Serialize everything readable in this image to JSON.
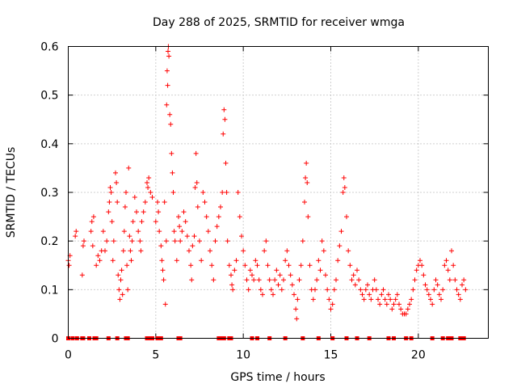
{
  "chart_data": {
    "type": "scatter",
    "title": "Day 288 of 2025, SRMTID for receiver wmga",
    "xlabel": "GPS time / hours",
    "ylabel": "SRMTID / TECUs",
    "xlim": [
      0,
      24
    ],
    "ylim": [
      0,
      0.6
    ],
    "xticks": [
      0,
      5,
      10,
      15,
      20
    ],
    "xtick_labels": [
      "0",
      "5",
      "10",
      "15",
      "20"
    ],
    "yticks": [
      0,
      0.1,
      0.2,
      0.3,
      0.4,
      0.5,
      0.6
    ],
    "ytick_labels": [
      "0",
      "0.1",
      "0.2",
      "0.3",
      "0.4",
      "0.5",
      "0.6"
    ],
    "grid": true,
    "marker": "plus",
    "color": "#ff0000",
    "zero_marker": "square",
    "series": [
      {
        "name": "SRMTID",
        "points": [
          [
            0.0,
            0.16
          ],
          [
            0.05,
            0.15
          ],
          [
            0.1,
            0.17
          ],
          [
            0.4,
            0.21
          ],
          [
            0.45,
            0.22
          ],
          [
            0.8,
            0.13
          ],
          [
            0.85,
            0.19
          ],
          [
            0.9,
            0.2
          ],
          [
            1.3,
            0.22
          ],
          [
            1.35,
            0.24
          ],
          [
            1.4,
            0.19
          ],
          [
            1.45,
            0.25
          ],
          [
            1.6,
            0.15
          ],
          [
            1.7,
            0.17
          ],
          [
            1.8,
            0.16
          ],
          [
            1.9,
            0.18
          ],
          [
            2.0,
            0.22
          ],
          [
            2.1,
            0.18
          ],
          [
            2.2,
            0.2
          ],
          [
            2.3,
            0.26
          ],
          [
            2.35,
            0.28
          ],
          [
            2.4,
            0.31
          ],
          [
            2.45,
            0.3
          ],
          [
            2.5,
            0.24
          ],
          [
            2.55,
            0.16
          ],
          [
            2.6,
            0.2
          ],
          [
            2.7,
            0.34
          ],
          [
            2.75,
            0.32
          ],
          [
            2.8,
            0.28
          ],
          [
            2.85,
            0.13
          ],
          [
            2.9,
            0.1
          ],
          [
            2.95,
            0.08
          ],
          [
            3.0,
            0.12
          ],
          [
            3.05,
            0.14
          ],
          [
            3.1,
            0.09
          ],
          [
            3.15,
            0.18
          ],
          [
            3.2,
            0.22
          ],
          [
            3.25,
            0.27
          ],
          [
            3.3,
            0.3
          ],
          [
            3.35,
            0.15
          ],
          [
            3.4,
            0.1
          ],
          [
            3.45,
            0.35
          ],
          [
            3.5,
            0.21
          ],
          [
            3.55,
            0.18
          ],
          [
            3.6,
            0.16
          ],
          [
            3.65,
            0.2
          ],
          [
            3.7,
            0.24
          ],
          [
            3.8,
            0.29
          ],
          [
            3.9,
            0.26
          ],
          [
            4.0,
            0.22
          ],
          [
            4.1,
            0.2
          ],
          [
            4.15,
            0.18
          ],
          [
            4.2,
            0.24
          ],
          [
            4.3,
            0.26
          ],
          [
            4.4,
            0.28
          ],
          [
            4.5,
            0.32
          ],
          [
            4.55,
            0.31
          ],
          [
            4.6,
            0.33
          ],
          [
            4.7,
            0.3
          ],
          [
            4.8,
            0.29
          ],
          [
            5.0,
            0.24
          ],
          [
            5.1,
            0.28
          ],
          [
            5.15,
            0.26
          ],
          [
            5.2,
            0.22
          ],
          [
            5.3,
            0.19
          ],
          [
            5.35,
            0.16
          ],
          [
            5.4,
            0.14
          ],
          [
            5.45,
            0.12
          ],
          [
            5.5,
            0.28
          ],
          [
            5.55,
            0.07
          ],
          [
            5.6,
            0.2
          ],
          [
            5.62,
            0.48
          ],
          [
            5.65,
            0.55
          ],
          [
            5.68,
            0.52
          ],
          [
            5.7,
            0.59
          ],
          [
            5.72,
            0.6
          ],
          [
            5.75,
            0.58
          ],
          [
            5.8,
            0.46
          ],
          [
            5.85,
            0.44
          ],
          [
            5.9,
            0.38
          ],
          [
            5.95,
            0.34
          ],
          [
            6.0,
            0.3
          ],
          [
            6.05,
            0.22
          ],
          [
            6.1,
            0.2
          ],
          [
            6.2,
            0.16
          ],
          [
            6.3,
            0.25
          ],
          [
            6.35,
            0.23
          ],
          [
            6.4,
            0.2
          ],
          [
            6.5,
            0.22
          ],
          [
            6.6,
            0.26
          ],
          [
            6.7,
            0.24
          ],
          [
            6.8,
            0.21
          ],
          [
            6.9,
            0.18
          ],
          [
            7.0,
            0.15
          ],
          [
            7.05,
            0.12
          ],
          [
            7.1,
            0.19
          ],
          [
            7.2,
            0.21
          ],
          [
            7.25,
            0.31
          ],
          [
            7.3,
            0.38
          ],
          [
            7.35,
            0.32
          ],
          [
            7.4,
            0.27
          ],
          [
            7.5,
            0.2
          ],
          [
            7.6,
            0.16
          ],
          [
            7.7,
            0.3
          ],
          [
            7.8,
            0.28
          ],
          [
            7.9,
            0.25
          ],
          [
            8.0,
            0.22
          ],
          [
            8.1,
            0.18
          ],
          [
            8.2,
            0.15
          ],
          [
            8.3,
            0.12
          ],
          [
            8.4,
            0.2
          ],
          [
            8.5,
            0.23
          ],
          [
            8.6,
            0.25
          ],
          [
            8.7,
            0.27
          ],
          [
            8.8,
            0.3
          ],
          [
            8.85,
            0.42
          ],
          [
            8.9,
            0.47
          ],
          [
            8.95,
            0.45
          ],
          [
            9.0,
            0.36
          ],
          [
            9.05,
            0.3
          ],
          [
            9.1,
            0.2
          ],
          [
            9.2,
            0.15
          ],
          [
            9.3,
            0.13
          ],
          [
            9.35,
            0.11
          ],
          [
            9.4,
            0.1
          ],
          [
            9.5,
            0.14
          ],
          [
            9.6,
            0.16
          ],
          [
            9.7,
            0.3
          ],
          [
            9.8,
            0.25
          ],
          [
            9.9,
            0.21
          ],
          [
            10.0,
            0.18
          ],
          [
            10.1,
            0.15
          ],
          [
            10.2,
            0.12
          ],
          [
            10.3,
            0.1
          ],
          [
            10.4,
            0.14
          ],
          [
            10.5,
            0.13
          ],
          [
            10.6,
            0.12
          ],
          [
            10.7,
            0.16
          ],
          [
            10.8,
            0.15
          ],
          [
            10.9,
            0.12
          ],
          [
            11.0,
            0.1
          ],
          [
            11.1,
            0.09
          ],
          [
            11.2,
            0.18
          ],
          [
            11.3,
            0.2
          ],
          [
            11.4,
            0.15
          ],
          [
            11.5,
            0.12
          ],
          [
            11.6,
            0.1
          ],
          [
            11.7,
            0.09
          ],
          [
            11.8,
            0.12
          ],
          [
            11.9,
            0.14
          ],
          [
            12.0,
            0.11
          ],
          [
            12.1,
            0.13
          ],
          [
            12.2,
            0.1
          ],
          [
            12.3,
            0.12
          ],
          [
            12.4,
            0.16
          ],
          [
            12.5,
            0.18
          ],
          [
            12.6,
            0.15
          ],
          [
            12.7,
            0.13
          ],
          [
            12.8,
            0.11
          ],
          [
            12.9,
            0.09
          ],
          [
            13.0,
            0.06
          ],
          [
            13.05,
            0.04
          ],
          [
            13.1,
            0.08
          ],
          [
            13.2,
            0.12
          ],
          [
            13.3,
            0.15
          ],
          [
            13.4,
            0.2
          ],
          [
            13.5,
            0.28
          ],
          [
            13.55,
            0.33
          ],
          [
            13.6,
            0.36
          ],
          [
            13.65,
            0.32
          ],
          [
            13.7,
            0.25
          ],
          [
            13.8,
            0.15
          ],
          [
            13.9,
            0.1
          ],
          [
            14.0,
            0.08
          ],
          [
            14.1,
            0.1
          ],
          [
            14.2,
            0.12
          ],
          [
            14.3,
            0.16
          ],
          [
            14.4,
            0.14
          ],
          [
            14.5,
            0.2
          ],
          [
            14.6,
            0.18
          ],
          [
            14.7,
            0.13
          ],
          [
            14.8,
            0.1
          ],
          [
            14.9,
            0.08
          ],
          [
            15.0,
            0.06
          ],
          [
            15.1,
            0.07
          ],
          [
            15.2,
            0.1
          ],
          [
            15.3,
            0.12
          ],
          [
            15.4,
            0.16
          ],
          [
            15.5,
            0.19
          ],
          [
            15.6,
            0.22
          ],
          [
            15.7,
            0.3
          ],
          [
            15.75,
            0.33
          ],
          [
            15.8,
            0.31
          ],
          [
            15.9,
            0.25
          ],
          [
            16.0,
            0.18
          ],
          [
            16.1,
            0.15
          ],
          [
            16.2,
            0.12
          ],
          [
            16.3,
            0.13
          ],
          [
            16.4,
            0.11
          ],
          [
            16.5,
            0.14
          ],
          [
            16.6,
            0.12
          ],
          [
            16.7,
            0.1
          ],
          [
            16.8,
            0.09
          ],
          [
            16.9,
            0.08
          ],
          [
            17.0,
            0.1
          ],
          [
            17.1,
            0.11
          ],
          [
            17.2,
            0.09
          ],
          [
            17.3,
            0.08
          ],
          [
            17.4,
            0.1
          ],
          [
            17.5,
            0.12
          ],
          [
            17.6,
            0.1
          ],
          [
            17.7,
            0.08
          ],
          [
            17.8,
            0.07
          ],
          [
            17.9,
            0.09
          ],
          [
            18.0,
            0.1
          ],
          [
            18.1,
            0.08
          ],
          [
            18.2,
            0.07
          ],
          [
            18.3,
            0.09
          ],
          [
            18.4,
            0.08
          ],
          [
            18.5,
            0.06
          ],
          [
            18.6,
            0.07
          ],
          [
            18.7,
            0.08
          ],
          [
            18.8,
            0.09
          ],
          [
            18.9,
            0.07
          ],
          [
            19.0,
            0.06
          ],
          [
            19.1,
            0.05
          ],
          [
            19.2,
            0.05
          ],
          [
            19.3,
            0.05
          ],
          [
            19.4,
            0.06
          ],
          [
            19.5,
            0.07
          ],
          [
            19.6,
            0.08
          ],
          [
            19.7,
            0.1
          ],
          [
            19.8,
            0.12
          ],
          [
            19.9,
            0.14
          ],
          [
            20.0,
            0.15
          ],
          [
            20.1,
            0.16
          ],
          [
            20.2,
            0.15
          ],
          [
            20.3,
            0.13
          ],
          [
            20.4,
            0.11
          ],
          [
            20.5,
            0.1
          ],
          [
            20.6,
            0.09
          ],
          [
            20.7,
            0.08
          ],
          [
            20.8,
            0.07
          ],
          [
            20.9,
            0.1
          ],
          [
            21.0,
            0.12
          ],
          [
            21.1,
            0.11
          ],
          [
            21.2,
            0.09
          ],
          [
            21.3,
            0.08
          ],
          [
            21.4,
            0.1
          ],
          [
            21.5,
            0.15
          ],
          [
            21.6,
            0.16
          ],
          [
            21.7,
            0.14
          ],
          [
            21.8,
            0.12
          ],
          [
            21.9,
            0.18
          ],
          [
            22.0,
            0.15
          ],
          [
            22.1,
            0.12
          ],
          [
            22.2,
            0.1
          ],
          [
            22.3,
            0.09
          ],
          [
            22.4,
            0.08
          ],
          [
            22.5,
            0.11
          ],
          [
            22.6,
            0.12
          ],
          [
            22.7,
            0.1
          ]
        ]
      }
    ],
    "zero_points": [
      0.0,
      0.25,
      0.5,
      0.8,
      0.85,
      1.2,
      1.5,
      1.6,
      2.3,
      2.8,
      3.3,
      3.4,
      4.5,
      4.7,
      4.8,
      5.1,
      5.3,
      6.3,
      6.4,
      8.6,
      8.7,
      8.9,
      9.2,
      9.3,
      10.5,
      10.8,
      11.5,
      12.4,
      13.4,
      14.3,
      15.1,
      15.9,
      16.5,
      17.2,
      18.3,
      18.6,
      19.3,
      19.6,
      20.8,
      21.4,
      21.7,
      21.9,
      22.4,
      22.6
    ]
  }
}
